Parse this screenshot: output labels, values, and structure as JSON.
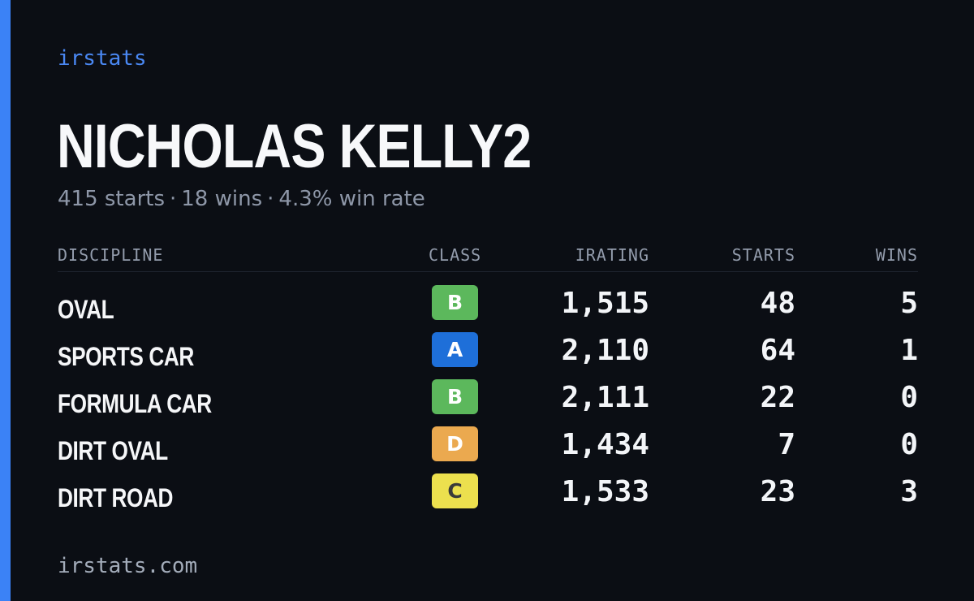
{
  "brand": "irstats",
  "driver": {
    "name": "NICHOLAS KELLY2",
    "summary": {
      "starts": "415 starts",
      "wins": "18 wins",
      "win_rate": "4.3% win rate",
      "separator": "·"
    }
  },
  "table": {
    "headers": {
      "discipline": "DISCIPLINE",
      "class": "CLASS",
      "irating": "IRATING",
      "starts": "STARTS",
      "wins": "WINS"
    },
    "rows": [
      {
        "discipline": "OVAL",
        "class": "B",
        "class_color": "#5cb85c",
        "class_text_color": "#ffffff",
        "irating": "1,515",
        "starts": "48",
        "wins": "5"
      },
      {
        "discipline": "SPORTS CAR",
        "class": "A",
        "class_color": "#1e6fd9",
        "class_text_color": "#ffffff",
        "irating": "2,110",
        "starts": "64",
        "wins": "1"
      },
      {
        "discipline": "FORMULA CAR",
        "class": "B",
        "class_color": "#5cb85c",
        "class_text_color": "#ffffff",
        "irating": "2,111",
        "starts": "22",
        "wins": "0"
      },
      {
        "discipline": "DIRT OVAL",
        "class": "D",
        "class_color": "#eba94f",
        "class_text_color": "#ffffff",
        "irating": "1,434",
        "starts": "7",
        "wins": "0"
      },
      {
        "discipline": "DIRT ROAD",
        "class": "C",
        "class_color": "#ece04e",
        "class_text_color": "#3a3a3a",
        "irating": "1,533",
        "starts": "23",
        "wins": "3"
      }
    ]
  },
  "footer": {
    "url": "irstats.com"
  },
  "colors": {
    "background": "#0b0e14",
    "accent": "#3b82f6",
    "brand_text": "#4a88f3",
    "muted_text": "#8e97a8"
  }
}
